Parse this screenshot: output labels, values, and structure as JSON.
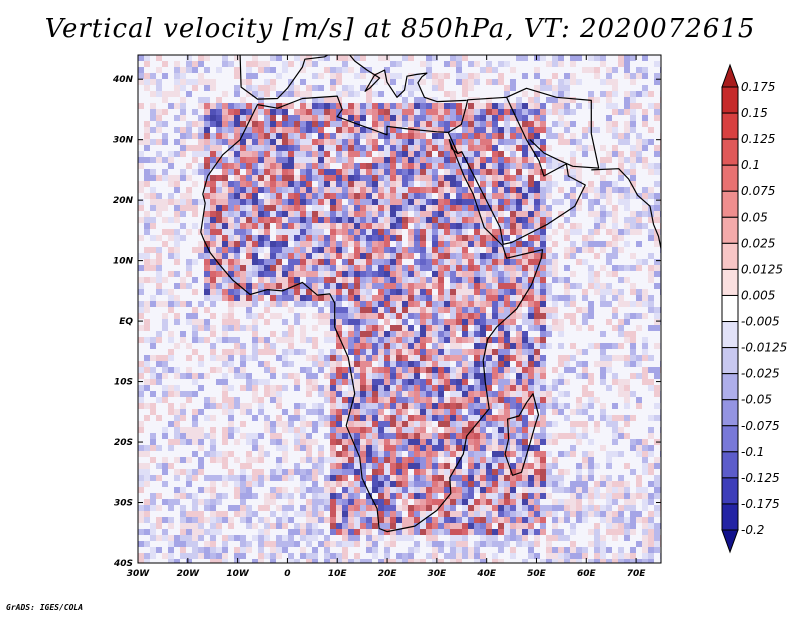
{
  "chart_data": {
    "type": "heatmap",
    "title": "Vertical velocity [m/s] at 850hPa, VT: 2020072615",
    "variable": "Vertical velocity",
    "units": "m/s",
    "level": "850hPa",
    "valid_time": "2020072615",
    "x_ticks": [
      {
        "value": -30,
        "label": "30W"
      },
      {
        "value": -20,
        "label": "20W"
      },
      {
        "value": -10,
        "label": "10W"
      },
      {
        "value": 0,
        "label": "0"
      },
      {
        "value": 10,
        "label": "10E"
      },
      {
        "value": 20,
        "label": "20E"
      },
      {
        "value": 30,
        "label": "30E"
      },
      {
        "value": 40,
        "label": "40E"
      },
      {
        "value": 50,
        "label": "50E"
      },
      {
        "value": 60,
        "label": "60E"
      },
      {
        "value": 70,
        "label": "70E"
      }
    ],
    "y_ticks": [
      {
        "value": 40,
        "label": "40N"
      },
      {
        "value": 30,
        "label": "30N"
      },
      {
        "value": 20,
        "label": "20N"
      },
      {
        "value": 10,
        "label": "10N"
      },
      {
        "value": 0,
        "label": "EQ"
      },
      {
        "value": -10,
        "label": "10S"
      },
      {
        "value": -20,
        "label": "20S"
      },
      {
        "value": -30,
        "label": "30S"
      },
      {
        "value": -40,
        "label": "40S"
      }
    ],
    "xlim": [
      -30,
      75
    ],
    "ylim": [
      -40,
      44
    ],
    "colorbar": {
      "levels": [
        "0.175",
        "0.15",
        "0.125",
        "0.1",
        "0.075",
        "0.05",
        "0.025",
        "0.0125",
        "0.005",
        "-0.005",
        "-0.0125",
        "-0.025",
        "-0.05",
        "-0.075",
        "-0.1",
        "-0.125",
        "-0.175",
        "-0.2"
      ],
      "colors": [
        "#a81c1c",
        "#c62a2a",
        "#d84040",
        "#e05858",
        "#e87272",
        "#ef8e8e",
        "#f4aaaa",
        "#f8c6c6",
        "#fbe0e0",
        "#ffffff",
        "#e2e2f8",
        "#c8c8f0",
        "#aeaeea",
        "#9494e2",
        "#7878d8",
        "#5c5cca",
        "#3e3eba",
        "#2424a4",
        "#12128c"
      ]
    },
    "credit": "GrADS: IGES/COLA"
  }
}
